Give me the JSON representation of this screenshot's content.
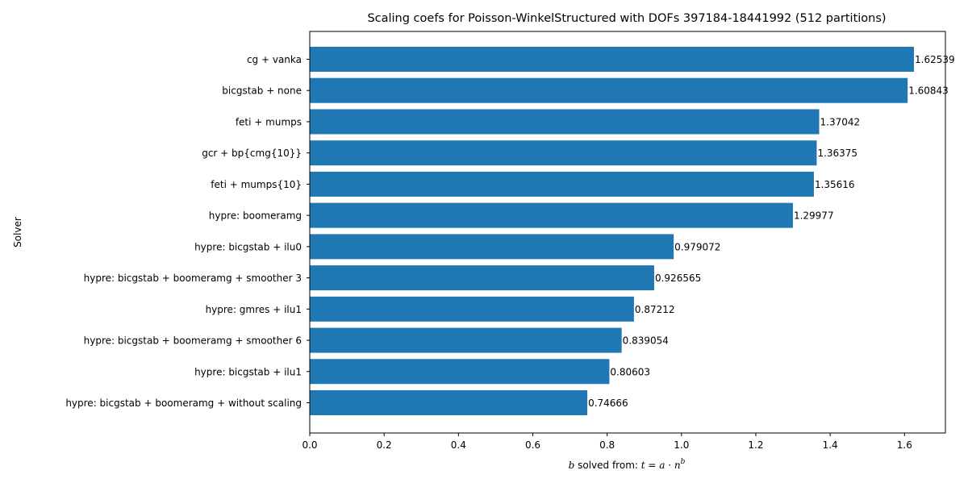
{
  "chart_data": {
    "type": "bar",
    "orientation": "horizontal",
    "title": "Scaling coefs for Poisson-WinkelStructured with DOFs 397184-18441992 (512 partitions)",
    "ylabel": "Solver",
    "xlabel": {
      "prefix_var": "b",
      "middle": " solved from: ",
      "formula_lhs": "t",
      "formula_eq": " = ",
      "formula_a": "a",
      "formula_dot": " · ",
      "formula_n": "n",
      "formula_exp": "b"
    },
    "xlim": [
      0,
      1.71
    ],
    "xticks": [
      "0.0",
      "0.2",
      "0.4",
      "0.6",
      "0.8",
      "1.0",
      "1.2",
      "1.4",
      "1.6"
    ],
    "bar_color": "#1f77b4",
    "grid": false,
    "categories": [
      "cg + vanka",
      "bicgstab + none",
      "feti + mumps",
      "gcr + bp{cmg{10}}",
      "feti + mumps{10}",
      "hypre: boomeramg",
      "hypre: bicgstab + ilu0",
      "hypre: bicgstab + boomeramg + smoother 3",
      "hypre: gmres + ilu1",
      "hypre: bicgstab + boomeramg + smoother 6",
      "hypre: bicgstab + ilu1",
      "hypre: bicgstab + boomeramg + without scaling"
    ],
    "values": [
      1.62539,
      1.60843,
      1.37042,
      1.36375,
      1.35616,
      1.29977,
      0.979072,
      0.926565,
      0.87212,
      0.839054,
      0.80603,
      0.74666
    ],
    "value_labels": [
      "1.62539",
      "1.60843",
      "1.37042",
      "1.36375",
      "1.35616",
      "1.29977",
      "0.979072",
      "0.926565",
      "0.87212",
      "0.839054",
      "0.80603",
      "0.74666"
    ]
  }
}
